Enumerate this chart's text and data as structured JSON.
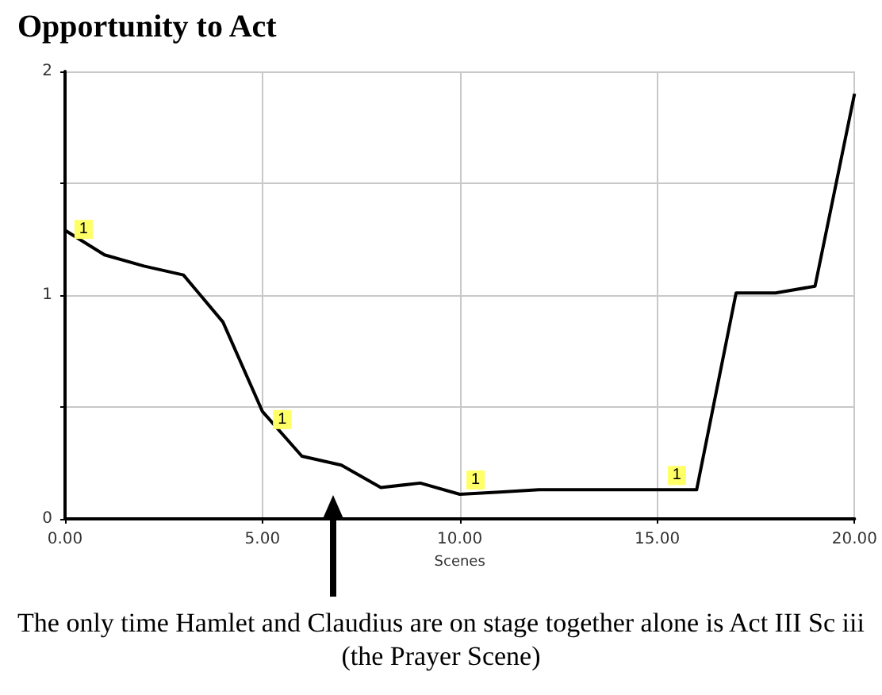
{
  "chart_data": {
    "type": "line",
    "title": "Opportunity to Act",
    "xlabel": "Scenes",
    "x": [
      0,
      1,
      2,
      3,
      4,
      5,
      6,
      7,
      8,
      9,
      10,
      11,
      12,
      13,
      14,
      15,
      16,
      17,
      18,
      19,
      20
    ],
    "series": [
      {
        "color": "#000000",
        "values": [
          1.29,
          1.18,
          1.13,
          1.09,
          0.88,
          0.48,
          0.28,
          0.24,
          0.14,
          0.16,
          0.11,
          0.12,
          0.13,
          0.13,
          0.13,
          0.13,
          0.13,
          1.01,
          1.01,
          1.04,
          1.9
        ]
      }
    ],
    "xlim": [
      0,
      20
    ],
    "xticks": [
      {
        "value": 0,
        "label": "0.00"
      },
      {
        "value": 5,
        "label": "5.00"
      },
      {
        "value": 10,
        "label": "10.00"
      },
      {
        "value": 15,
        "label": "15.00"
      },
      {
        "value": 20,
        "label": "20.00"
      }
    ],
    "ylim": [
      0,
      2
    ],
    "yticks": [
      0,
      {
        "value": 0.5,
        "label": null
      },
      1,
      {
        "value": 1.5,
        "label": null
      },
      2
    ],
    "grid": true,
    "marker": "none",
    "line_style": "solid",
    "annotations": [
      {
        "text": "1",
        "x": 0.47,
        "y": 1.23
      },
      {
        "text": "1",
        "x": 5.5,
        "y": 0.38
      },
      {
        "text": "1",
        "x": 10.4,
        "y": 0.11
      },
      {
        "text": "1",
        "x": 15.5,
        "y": 0.13
      },
      "The only time Hamlet and Claudius are on stage together alone is Act III Sc iii (the Prayer Scene)"
    ]
  }
}
